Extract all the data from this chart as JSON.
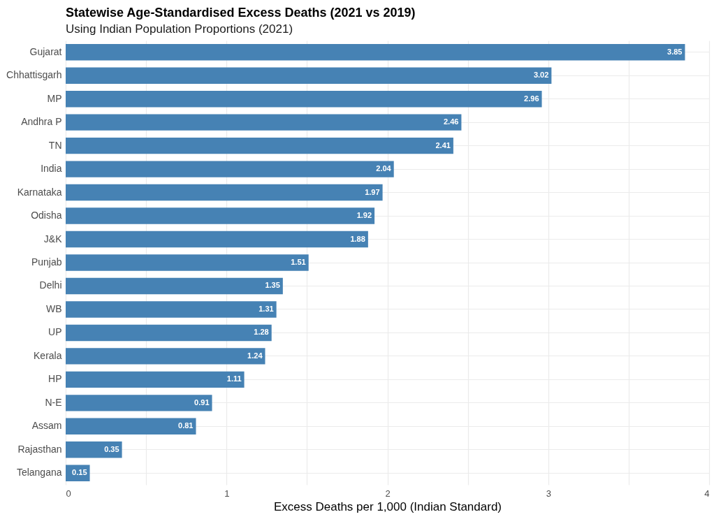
{
  "chart_data": {
    "type": "bar",
    "orientation": "horizontal",
    "title": "Statewise Age-Standardised Excess Deaths (2021 vs 2019)",
    "subtitle": "Using Indian Population Proportions (2021)",
    "xlabel": "Excess Deaths per 1,000 (Indian Standard)",
    "categories": [
      "Gujarat",
      "Chhattisgarh",
      "MP",
      "Andhra P",
      "TN",
      "India",
      "Karnataka",
      "Odisha",
      "J&K",
      "Punjab",
      "Delhi",
      "WB",
      "UP",
      "Kerala",
      "HP",
      "N-E",
      "Assam",
      "Rajasthan",
      "Telangana"
    ],
    "values": [
      3.85,
      3.02,
      2.96,
      2.46,
      2.41,
      2.04,
      1.97,
      1.92,
      1.88,
      1.51,
      1.35,
      1.31,
      1.28,
      1.24,
      1.11,
      0.91,
      0.81,
      0.35,
      0.15
    ],
    "color": "#4682b4",
    "xlim": [
      0,
      4
    ],
    "xticks": [
      0,
      {
        "value": 0.5,
        "label": null
      },
      1,
      {
        "value": 1.5,
        "label": null
      },
      2,
      {
        "value": 2.5,
        "label": null
      },
      3,
      {
        "value": 3.5,
        "label": null
      },
      4
    ],
    "grid": true,
    "data_labels": true
  }
}
